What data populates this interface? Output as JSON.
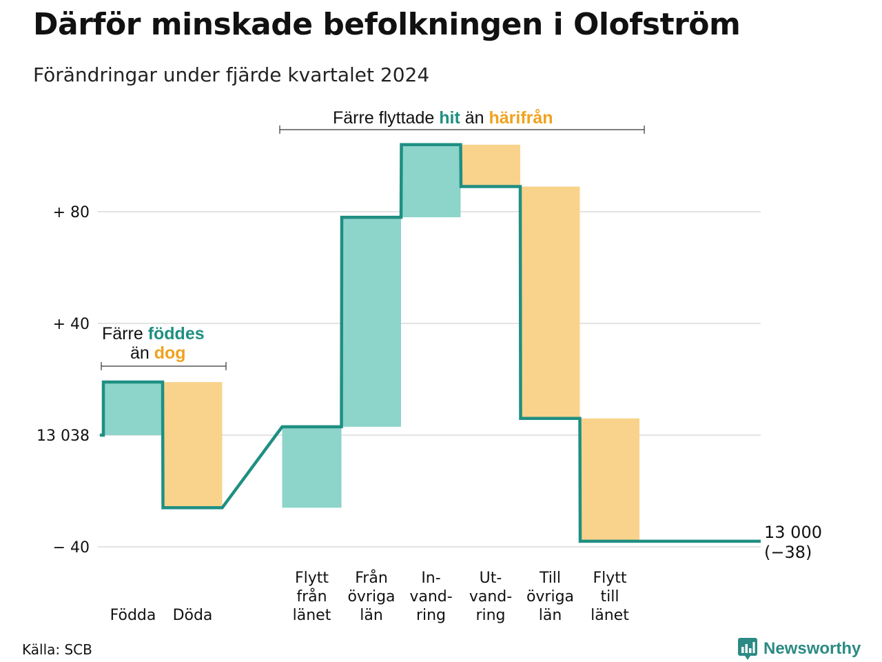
{
  "title": "Därför minskade befolkningen i Olofström",
  "subtitle": "Förändringar under fjärde kvartalet 2024",
  "source": "Källa: SCB",
  "brand": "Newsworthy",
  "colors": {
    "in": "#8dd4cb",
    "out": "#f9d38c",
    "line": "#1f8f82",
    "hit": "#1f8f82",
    "away": "#f0a21e",
    "grid": "#e3e3e3"
  },
  "annotations": {
    "left": {
      "prefix": "Färre",
      "key1": "föddes",
      "mid": "än",
      "key2": "dog"
    },
    "top": {
      "prefix": "Färre flyttade",
      "key1": "hit",
      "mid": "än",
      "key2": "härifrån"
    }
  },
  "chart_data": {
    "type": "waterfall",
    "baseline": 13038,
    "y_ticks": [
      {
        "value": 80,
        "label": "+ 80"
      },
      {
        "value": 40,
        "label": "+ 40"
      },
      {
        "value": 0,
        "label": "13 038"
      },
      {
        "value": -40,
        "label": "− 40"
      }
    ],
    "ylim": [
      -42,
      106
    ],
    "steps": [
      {
        "label": "Födda",
        "lines": [
          "Födda"
        ],
        "value": 19,
        "kind": "in"
      },
      {
        "label": "Döda",
        "lines": [
          "Döda"
        ],
        "value": -45,
        "kind": "out"
      },
      {
        "label": "Flytt från länet",
        "lines": [
          "Flytt",
          "från",
          "länet"
        ],
        "value": 29,
        "kind": "in"
      },
      {
        "label": "Från övriga län",
        "lines": [
          "Från",
          "övriga",
          "län"
        ],
        "value": 75,
        "kind": "in"
      },
      {
        "label": "Invandring",
        "lines": [
          "In-",
          "vand-",
          "ring"
        ],
        "value": 26,
        "kind": "in"
      },
      {
        "label": "Utvandring",
        "lines": [
          "Ut-",
          "vand-",
          "ring"
        ],
        "value": -15,
        "kind": "out"
      },
      {
        "label": "Till övriga län",
        "lines": [
          "Till",
          "övriga",
          "län"
        ],
        "value": -83,
        "kind": "out"
      },
      {
        "label": "Flytt till länet",
        "lines": [
          "Flytt",
          "till",
          "länet"
        ],
        "value": -44,
        "kind": "out"
      }
    ],
    "end": {
      "population": "13 000",
      "change": "(−38)",
      "value": -38
    }
  }
}
